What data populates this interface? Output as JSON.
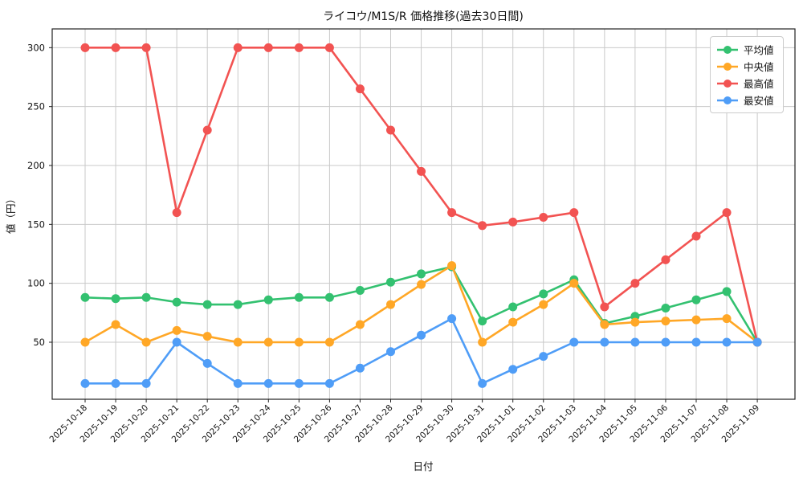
{
  "chart_data": {
    "type": "line",
    "title": "ライコウ/M1S/R 価格推移(過去30日間)",
    "xlabel": "日付",
    "ylabel": "値（円）",
    "x": [
      "2025-10-18",
      "2025-10-19",
      "2025-10-20",
      "2025-10-21",
      "2025-10-22",
      "2025-10-23",
      "2025-10-24",
      "2025-10-25",
      "2025-10-26",
      "2025-10-27",
      "2025-10-28",
      "2025-10-29",
      "2025-10-30",
      "2025-10-31",
      "2025-11-01",
      "2025-11-02",
      "2025-11-03",
      "2025-11-04",
      "2025-11-05",
      "2025-11-06",
      "2025-11-07",
      "2025-11-08",
      "2025-11-09"
    ],
    "series": [
      {
        "key": "avg",
        "name": "平均値",
        "color": "#33c170",
        "values": [
          88,
          87,
          88,
          84,
          82,
          82,
          86,
          88,
          88,
          94,
          101,
          108,
          114,
          68,
          80,
          91,
          103,
          66,
          72,
          79,
          86,
          93,
          50
        ]
      },
      {
        "key": "median",
        "name": "中央値",
        "color": "#ffa726",
        "values": [
          50,
          65,
          50,
          60,
          55,
          50,
          50,
          50,
          50,
          65,
          82,
          99,
          115,
          50,
          67,
          82,
          100,
          65,
          67,
          68,
          69,
          70,
          50
        ]
      },
      {
        "key": "max",
        "name": "最高値",
        "color": "#f25352",
        "values": [
          300,
          300,
          300,
          160,
          230,
          300,
          300,
          300,
          300,
          265,
          230,
          195,
          160,
          149,
          152,
          156,
          160,
          80,
          100,
          120,
          140,
          160,
          50
        ]
      },
      {
        "key": "min",
        "name": "最安値",
        "color": "#4f9df7",
        "values": [
          15,
          15,
          15,
          50,
          32,
          15,
          15,
          15,
          15,
          28,
          42,
          56,
          70,
          15,
          27,
          38,
          50,
          50,
          50,
          50,
          50,
          50,
          50
        ]
      }
    ],
    "yticks": [
      50,
      100,
      150,
      200,
      250,
      300
    ],
    "ylim": [
      2,
      316
    ],
    "x_tick_rotation": 45,
    "grid": true,
    "grid_color": "#c9c9c9",
    "spine_color": "#222222",
    "background": "#ffffff",
    "legend_position": "upper right"
  }
}
